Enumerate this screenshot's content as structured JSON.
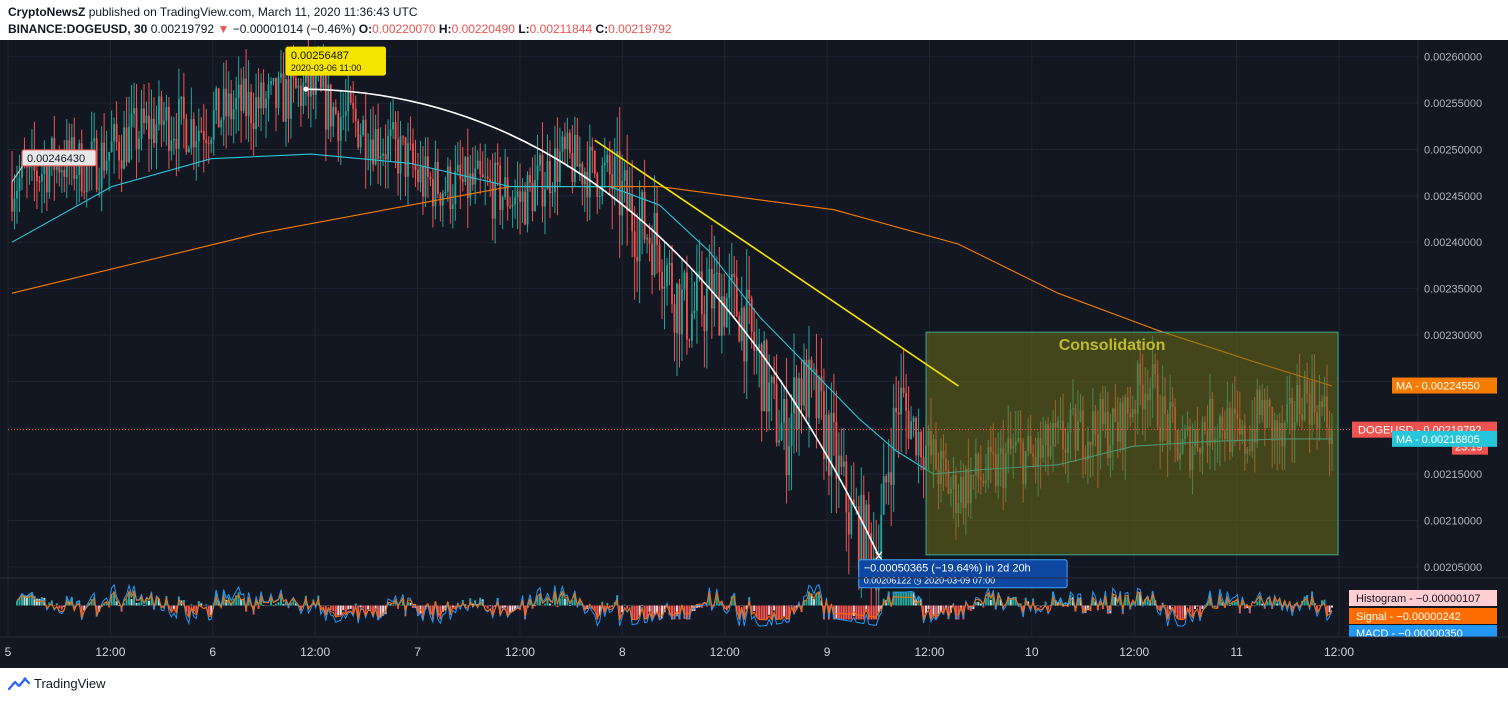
{
  "header": {
    "author": "CryptoNewsZ",
    "published_text": "published on TradingView.com, March 11, 2020 11:36:43 UTC",
    "symbol": "BINANCE:DOGEUSD, 30",
    "last": "0.00219792",
    "change_arrow": "▼",
    "change": "−0.00001014 (−0.46%)",
    "o_label": "O:",
    "o": "0.00220070",
    "h_label": "H:",
    "h": "0.00220490",
    "l_label": "L:",
    "l": "0.00211844",
    "c_label": "C:",
    "c": "0.00219792"
  },
  "footer": {
    "brand": "TradingView"
  },
  "chart_data": {
    "type": "candlestick",
    "title": "",
    "price_axis": {
      "ticks": [
        "0.00260000",
        "0.00255000",
        "0.00250000",
        "0.00245000",
        "0.00240000",
        "0.00235000",
        "0.00230000",
        "0.00225000",
        "0.00220000",
        "0.00215000",
        "0.00210000",
        "0.00205000"
      ],
      "range": [
        0.002038,
        0.002618
      ]
    },
    "time_axis": {
      "ticks": [
        "5",
        "12:00",
        "6",
        "12:00",
        "7",
        "12:00",
        "8",
        "12:00",
        "9",
        "12:00",
        "10",
        "12:00",
        "11",
        "12:00"
      ]
    },
    "price_trend": [
      [
        0,
        0.002465
      ],
      [
        8,
        0.00247
      ],
      [
        18,
        0.00249
      ],
      [
        30,
        0.00248
      ],
      [
        45,
        0.00251
      ],
      [
        60,
        0.00253
      ],
      [
        75,
        0.002525
      ],
      [
        90,
        0.002545
      ],
      [
        105,
        0.00255
      ],
      [
        118,
        0.002565
      ],
      [
        130,
        0.00254
      ],
      [
        140,
        0.002525
      ],
      [
        150,
        0.002505
      ],
      [
        158,
        0.00249
      ],
      [
        165,
        0.002465
      ],
      [
        175,
        0.00246
      ],
      [
        185,
        0.00246
      ],
      [
        195,
        0.002455
      ],
      [
        205,
        0.002445
      ],
      [
        212,
        0.002465
      ],
      [
        220,
        0.00249
      ],
      [
        230,
        0.00248
      ],
      [
        240,
        0.00247
      ],
      [
        250,
        0.002425
      ],
      [
        260,
        0.0024
      ],
      [
        265,
        0.00235
      ],
      [
        272,
        0.00232
      ],
      [
        282,
        0.002345
      ],
      [
        292,
        0.00233
      ],
      [
        300,
        0.00227
      ],
      [
        306,
        0.002215
      ],
      [
        311,
        0.00219
      ],
      [
        316,
        0.00225
      ],
      [
        322,
        0.00223
      ],
      [
        330,
        0.00217
      ],
      [
        336,
        0.00211
      ],
      [
        342,
        0.00208
      ],
      [
        348,
        0.002062
      ],
      [
        352,
        0.002165
      ],
      [
        356,
        0.00223
      ],
      [
        362,
        0.0022
      ],
      [
        370,
        0.002165
      ],
      [
        378,
        0.00213
      ],
      [
        386,
        0.002145
      ],
      [
        394,
        0.00215
      ],
      [
        402,
        0.002175
      ],
      [
        410,
        0.002165
      ],
      [
        418,
        0.00218
      ],
      [
        428,
        0.002195
      ],
      [
        436,
        0.0022
      ],
      [
        444,
        0.002195
      ],
      [
        450,
        0.00223
      ],
      [
        456,
        0.002255
      ],
      [
        462,
        0.00221
      ],
      [
        470,
        0.002175
      ],
      [
        478,
        0.0022
      ],
      [
        486,
        0.00221
      ],
      [
        494,
        0.00218
      ],
      [
        502,
        0.00222
      ],
      [
        510,
        0.00218
      ],
      [
        518,
        0.00224
      ],
      [
        524,
        0.002225
      ],
      [
        530,
        0.002198
      ]
    ],
    "moving_averages": [
      {
        "name": "MA",
        "color": "#f57c00",
        "value": "0.00224550",
        "points": [
          [
            0,
            0.002345
          ],
          [
            100,
            0.00241
          ],
          [
            200,
            0.00246
          ],
          [
            260,
            0.00246
          ],
          [
            330,
            0.002435
          ],
          [
            380,
            0.002398
          ],
          [
            420,
            0.002345
          ],
          [
            460,
            0.002305
          ],
          [
            500,
            0.00227
          ],
          [
            530,
            0.002245
          ]
        ]
      },
      {
        "name": "MA",
        "color": "#26c6da",
        "value": "0.00218805",
        "points": [
          [
            0,
            0.0024
          ],
          [
            40,
            0.00246
          ],
          [
            80,
            0.00249
          ],
          [
            120,
            0.002495
          ],
          [
            160,
            0.002485
          ],
          [
            200,
            0.00246
          ],
          [
            240,
            0.00246
          ],
          [
            260,
            0.00244
          ],
          [
            280,
            0.00239
          ],
          [
            300,
            0.00232
          ],
          [
            320,
            0.002265
          ],
          [
            340,
            0.00221
          ],
          [
            355,
            0.002175
          ],
          [
            370,
            0.00215
          ],
          [
            390,
            0.002155
          ],
          [
            420,
            0.00216
          ],
          [
            450,
            0.00218
          ],
          [
            480,
            0.002185
          ],
          [
            510,
            0.002188
          ],
          [
            530,
            0.002188
          ]
        ]
      }
    ],
    "last_price": {
      "label": "DOGEUSD",
      "value": "0.00219792",
      "countdown": "23:19"
    },
    "annotations": [
      {
        "kind": "price_label",
        "text": "0.00246430",
        "bar": 0,
        "price": 0.002465
      },
      {
        "kind": "price_label",
        "text": "0.00256487",
        "subtext": "2020-03-06 11:00",
        "bar": 118,
        "price": 0.002565
      },
      {
        "kind": "measure",
        "text": "−0.00050365 (−19.64%) in 2d 20h",
        "subtext": "0.00206122 ◷ 2020-03-09 07:00",
        "bar": 348,
        "price": 0.002062
      },
      {
        "kind": "box",
        "text": "Consolidation",
        "bar_from": 367,
        "bar_to": 530,
        "price_from": 0.002063,
        "price_to": 0.002303
      }
    ],
    "trendlines": [
      {
        "name": "yellow-trendline",
        "color": "#f5e400",
        "from": [
          234,
          0.00251
        ],
        "to": [
          380,
          0.002245
        ]
      }
    ],
    "curve": {
      "color": "#ffffff",
      "from": [
        118,
        0.002565
      ],
      "peak": [
        180,
        0.00255
      ],
      "to": [
        348,
        0.002062
      ]
    },
    "indicator": {
      "name": "MACD",
      "histogram": "−0.00000107",
      "signal": "−0.00000242",
      "macd": "−0.00000350",
      "labels": {
        "histogram": "Histogram",
        "signal": "Signal",
        "macd": "MACD"
      },
      "colors": {
        "histogram": "#26a69a",
        "signal": "#ff6d00",
        "macd": "#2196f3"
      }
    },
    "colors": {
      "up": "#26a69a",
      "down": "#ef5350",
      "box_fill": "#6b6b14",
      "box_text": "#bdbd2c"
    },
    "grid": true
  }
}
